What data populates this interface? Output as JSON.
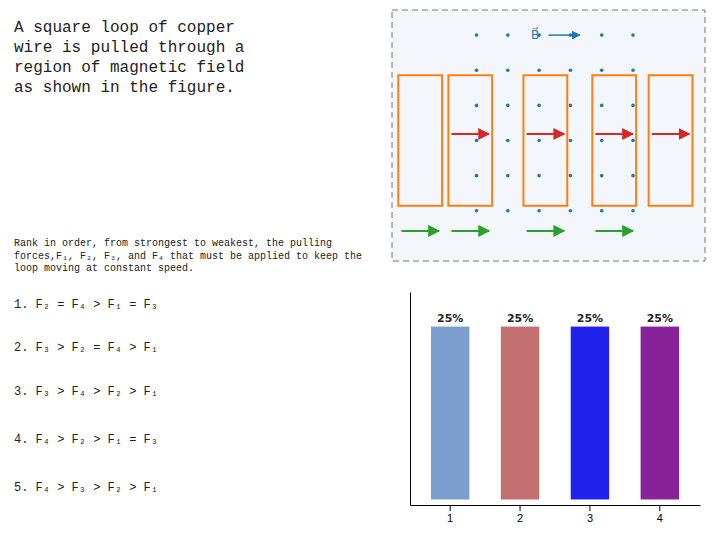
{
  "chart_data": {
    "type": "bar",
    "title": "A square loop of copper\nwire is pulled through a\nregion of magnetic field\nas shown in the figure.",
    "annotations": [
      "Rank in order, from strongest to weakest, the pulling\nforces,F₁, F₂, F₃, and F₄ that must be applied to keep the\nloop moving at constant speed.",
      "1.  F₂ = F₄ > F₁ = F₃",
      "2. F₃ > F₂ = F₄ > F₁",
      "3. F₃ > F₄ > F₂ > F₁",
      "4. F₄ > F₂ > F₁ = F₃",
      "5. F₄ > F₃ > F₂ > F₁",
      "B⃗"
    ],
    "categories": [
      "1",
      "2",
      "3",
      "4"
    ],
    "values": [
      25,
      25,
      25,
      25
    ],
    "value_labels": [
      "25%",
      "25%",
      "25%",
      "25%"
    ],
    "data_labels": true,
    "colors": [
      "#7b9ecf",
      "#c47070",
      "#2222ee",
      "#882299"
    ],
    "ylim": [
      -0.8,
      30
    ],
    "tick_labels": "x"
  }
}
